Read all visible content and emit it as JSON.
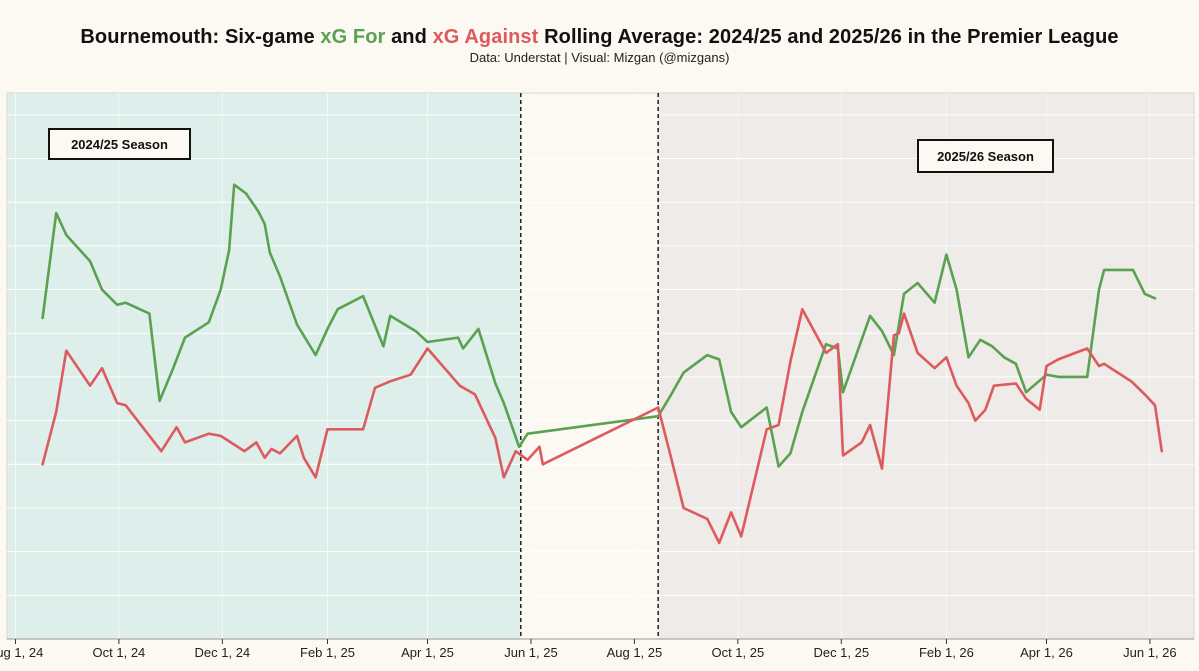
{
  "title": {
    "prefix": "Bournemouth: Six-game ",
    "xg_for": "xG For",
    "middle": " and ",
    "xg_against": "xG Against",
    "suffix": " Rolling Average: 2024/25 and 2025/26 in the Premier League"
  },
  "subtitle": "Data: Understat | Visual: Mizgan (@mizgans)",
  "season_labels": {
    "first": "2024/25 Season",
    "second": "2025/26 Season"
  },
  "colors": {
    "xg_for": "#5aa150",
    "xg_against": "#dd5a5e",
    "season1_bg": "#deeeea",
    "offseason_bg": "#fcf8f2",
    "season2_bg": "#eeebe8",
    "grid": "#ffffff",
    "background": "#fcf8f2"
  },
  "chart_data": {
    "type": "line",
    "x_axis": {
      "type": "date",
      "range": [
        "2024-07-27",
        "2026-06-27"
      ],
      "ticks": [
        {
          "date": "2024-08-01",
          "label": "Aug 1, 24"
        },
        {
          "date": "2024-10-01",
          "label": "Oct 1, 24"
        },
        {
          "date": "2024-12-01",
          "label": "Dec 1, 24"
        },
        {
          "date": "2025-02-01",
          "label": "Feb 1, 25"
        },
        {
          "date": "2025-04-01",
          "label": "Apr 1, 25"
        },
        {
          "date": "2025-06-01",
          "label": "Jun 1, 25"
        },
        {
          "date": "2025-08-01",
          "label": "Aug 1, 25"
        },
        {
          "date": "2025-10-01",
          "label": "Oct 1, 25"
        },
        {
          "date": "2025-12-01",
          "label": "Dec 1, 25"
        },
        {
          "date": "2026-02-01",
          "label": "Feb 1, 26"
        },
        {
          "date": "2026-04-01",
          "label": "Apr 1, 26"
        },
        {
          "date": "2026-06-01",
          "label": "Jun 1, 26"
        }
      ]
    },
    "y_axis": {
      "range": [
        0,
        2.5
      ],
      "tick_labels_shown": false,
      "grid_step": 0.2
    },
    "grid": true,
    "regions": [
      {
        "name": "2024/25 Season",
        "start": "2024-07-27",
        "end": "2025-05-26"
      },
      {
        "name": "offseason",
        "start": "2025-05-26",
        "end": "2025-08-15"
      },
      {
        "name": "2025/26 Season",
        "start": "2025-08-15",
        "end": "2026-06-27"
      }
    ],
    "series": [
      {
        "name": "xG For",
        "color": "#5aa150",
        "points": [
          [
            "2024-08-17",
            1.47
          ],
          [
            "2024-08-25",
            1.95
          ],
          [
            "2024-08-31",
            1.85
          ],
          [
            "2024-09-14",
            1.73
          ],
          [
            "2024-09-21",
            1.6
          ],
          [
            "2024-09-30",
            1.53
          ],
          [
            "2024-10-05",
            1.54
          ],
          [
            "2024-10-19",
            1.49
          ],
          [
            "2024-10-25",
            1.09
          ],
          [
            "2024-11-02",
            1.24
          ],
          [
            "2024-11-09",
            1.38
          ],
          [
            "2024-11-23",
            1.45
          ],
          [
            "2024-11-30",
            1.6
          ],
          [
            "2024-12-05",
            1.78
          ],
          [
            "2024-12-08",
            2.08
          ],
          [
            "2024-12-15",
            2.04
          ],
          [
            "2024-12-22",
            1.96
          ],
          [
            "2024-12-26",
            1.9
          ],
          [
            "2024-12-29",
            1.77
          ],
          [
            "2025-01-04",
            1.66
          ],
          [
            "2025-01-14",
            1.44
          ],
          [
            "2025-01-25",
            1.3
          ],
          [
            "2025-02-01",
            1.42
          ],
          [
            "2025-02-07",
            1.51
          ],
          [
            "2025-02-22",
            1.57
          ],
          [
            "2025-03-06",
            1.34
          ],
          [
            "2025-03-10",
            1.48
          ],
          [
            "2025-03-25",
            1.41
          ],
          [
            "2025-04-01",
            1.36
          ],
          [
            "2025-04-19",
            1.38
          ],
          [
            "2025-04-22",
            1.33
          ],
          [
            "2025-05-01",
            1.42
          ],
          [
            "2025-05-11",
            1.17
          ],
          [
            "2025-05-16",
            1.08
          ],
          [
            "2025-05-25",
            0.88
          ],
          [
            "2025-05-30",
            0.94
          ],
          [
            "2025-08-15",
            1.02
          ],
          [
            "2025-08-22",
            1.11
          ],
          [
            "2025-08-30",
            1.22
          ],
          [
            "2025-09-13",
            1.3
          ],
          [
            "2025-09-20",
            1.28
          ],
          [
            "2025-09-27",
            1.04
          ],
          [
            "2025-10-03",
            0.97
          ],
          [
            "2025-10-18",
            1.06
          ],
          [
            "2025-10-25",
            0.79
          ],
          [
            "2025-11-01",
            0.85
          ],
          [
            "2025-11-08",
            1.04
          ],
          [
            "2025-11-22",
            1.35
          ],
          [
            "2025-11-29",
            1.33
          ],
          [
            "2025-12-02",
            1.13
          ],
          [
            "2025-12-13",
            1.37
          ],
          [
            "2025-12-18",
            1.48
          ],
          [
            "2025-12-25",
            1.41
          ],
          [
            "2026-01-01",
            1.3
          ],
          [
            "2026-01-07",
            1.58
          ],
          [
            "2026-01-15",
            1.63
          ],
          [
            "2026-01-25",
            1.54
          ],
          [
            "2026-02-01",
            1.76
          ],
          [
            "2026-02-07",
            1.6
          ],
          [
            "2026-02-14",
            1.29
          ],
          [
            "2026-02-21",
            1.37
          ],
          [
            "2026-02-28",
            1.34
          ],
          [
            "2026-03-07",
            1.29
          ],
          [
            "2026-03-14",
            1.26
          ],
          [
            "2026-03-20",
            1.13
          ],
          [
            "2026-04-01",
            1.21
          ],
          [
            "2026-04-08",
            1.2
          ],
          [
            "2026-04-18",
            1.2
          ],
          [
            "2026-04-25",
            1.2
          ],
          [
            "2026-05-02",
            1.6
          ],
          [
            "2026-05-05",
            1.69
          ],
          [
            "2026-05-22",
            1.69
          ],
          [
            "2026-05-29",
            1.58
          ],
          [
            "2026-06-04",
            1.56
          ]
        ]
      },
      {
        "name": "xG Against",
        "color": "#dd5a5e",
        "points": [
          [
            "2024-08-17",
            0.8
          ],
          [
            "2024-08-25",
            1.04
          ],
          [
            "2024-08-31",
            1.32
          ],
          [
            "2024-09-14",
            1.16
          ],
          [
            "2024-09-21",
            1.24
          ],
          [
            "2024-09-30",
            1.08
          ],
          [
            "2024-10-05",
            1.07
          ],
          [
            "2024-10-26",
            0.86
          ],
          [
            "2024-11-04",
            0.97
          ],
          [
            "2024-11-09",
            0.9
          ],
          [
            "2024-11-23",
            0.94
          ],
          [
            "2024-11-30",
            0.93
          ],
          [
            "2024-12-06",
            0.9
          ],
          [
            "2024-12-14",
            0.86
          ],
          [
            "2024-12-21",
            0.9
          ],
          [
            "2024-12-26",
            0.83
          ],
          [
            "2024-12-30",
            0.87
          ],
          [
            "2025-01-04",
            0.85
          ],
          [
            "2025-01-14",
            0.93
          ],
          [
            "2025-01-18",
            0.83
          ],
          [
            "2025-01-25",
            0.74
          ],
          [
            "2025-02-01",
            0.96
          ],
          [
            "2025-02-22",
            0.96
          ],
          [
            "2025-03-01",
            1.15
          ],
          [
            "2025-03-10",
            1.18
          ],
          [
            "2025-03-22",
            1.21
          ],
          [
            "2025-04-01",
            1.33
          ],
          [
            "2025-04-20",
            1.16
          ],
          [
            "2025-04-29",
            1.12
          ],
          [
            "2025-05-11",
            0.92
          ],
          [
            "2025-05-16",
            0.74
          ],
          [
            "2025-05-23",
            0.86
          ],
          [
            "2025-05-30",
            0.82
          ],
          [
            "2025-06-06",
            0.88
          ],
          [
            "2025-06-08",
            0.8
          ],
          [
            "2025-08-15",
            1.06
          ],
          [
            "2025-08-22",
            0.85
          ],
          [
            "2025-08-30",
            0.6
          ],
          [
            "2025-09-13",
            0.55
          ],
          [
            "2025-09-20",
            0.44
          ],
          [
            "2025-09-27",
            0.58
          ],
          [
            "2025-10-03",
            0.47
          ],
          [
            "2025-10-18",
            0.96
          ],
          [
            "2025-10-25",
            0.98
          ],
          [
            "2025-11-01",
            1.27
          ],
          [
            "2025-11-08",
            1.51
          ],
          [
            "2025-11-22",
            1.31
          ],
          [
            "2025-11-29",
            1.35
          ],
          [
            "2025-12-02",
            0.84
          ],
          [
            "2025-12-13",
            0.9
          ],
          [
            "2025-12-18",
            0.98
          ],
          [
            "2025-12-25",
            0.78
          ],
          [
            "2026-01-01",
            1.39
          ],
          [
            "2026-01-04",
            1.4
          ],
          [
            "2026-01-07",
            1.49
          ],
          [
            "2026-01-15",
            1.31
          ],
          [
            "2026-01-25",
            1.24
          ],
          [
            "2026-02-01",
            1.29
          ],
          [
            "2026-02-07",
            1.16
          ],
          [
            "2026-02-14",
            1.08
          ],
          [
            "2026-02-18",
            1.0
          ],
          [
            "2026-02-24",
            1.05
          ],
          [
            "2026-03-01",
            1.16
          ],
          [
            "2026-03-14",
            1.17
          ],
          [
            "2026-03-20",
            1.1
          ],
          [
            "2026-03-28",
            1.05
          ],
          [
            "2026-04-01",
            1.25
          ],
          [
            "2026-04-08",
            1.28
          ],
          [
            "2026-04-18",
            1.31
          ],
          [
            "2026-04-25",
            1.33
          ],
          [
            "2026-05-02",
            1.25
          ],
          [
            "2026-05-05",
            1.26
          ],
          [
            "2026-05-13",
            1.22
          ],
          [
            "2026-05-21",
            1.18
          ],
          [
            "2026-05-29",
            1.12
          ],
          [
            "2026-06-04",
            1.07
          ],
          [
            "2026-06-08",
            0.86
          ]
        ]
      }
    ]
  }
}
